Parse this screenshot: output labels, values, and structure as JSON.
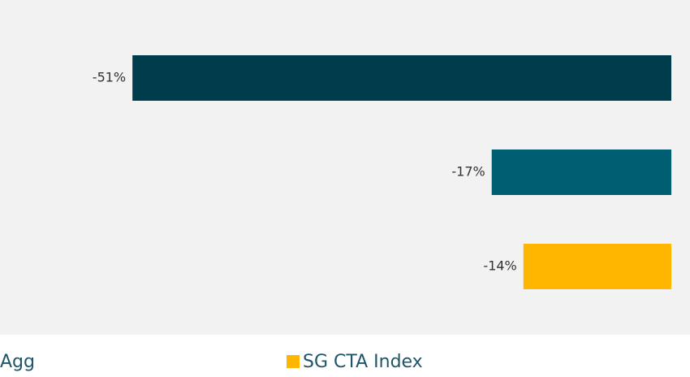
{
  "chart_data": {
    "type": "bar",
    "orientation": "horizontal",
    "values": [
      -51,
      -17,
      -14
    ],
    "value_labels": [
      "-51%",
      "-17%",
      "-14%"
    ],
    "colors": [
      "#003d4c",
      "#005e72",
      "#ffb600"
    ],
    "xlim": [
      -60,
      0
    ],
    "legend": [
      {
        "name": "Agg"
      },
      {
        "name": "SG CTA Index",
        "color": "#ffb600"
      }
    ]
  }
}
